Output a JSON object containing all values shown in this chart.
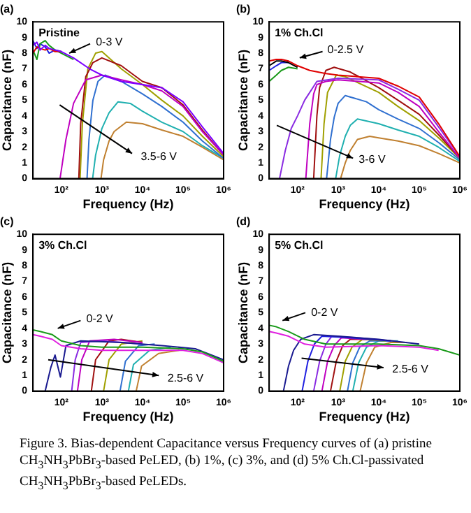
{
  "chart_data": [
    {
      "type": "line",
      "title": "(a)",
      "subtitle": "Pristine",
      "xlabel": "Frequency (Hz)",
      "ylabel": "Capacitance (nF)",
      "log": "x",
      "marker": "none",
      "xlim": [
        20,
        1000000
      ],
      "xticks": [
        {
          "value": 100,
          "label": "10²"
        },
        {
          "value": 1000,
          "label": "10³"
        },
        {
          "value": 10000,
          "label": "10⁴"
        },
        {
          "value": 100000,
          "label": "10⁵"
        },
        {
          "value": 1000000,
          "label": "10⁶"
        }
      ],
      "ylim": [
        0,
        10
      ],
      "yticks": [
        0,
        1,
        2,
        3,
        4,
        5,
        6,
        7,
        8,
        9,
        10
      ],
      "annotations": [
        "0-3 V",
        "3.5-6 V"
      ],
      "series": [
        {
          "color": "#7b00ff",
          "x": [
            20,
            25,
            30,
            40,
            50,
            70,
            100,
            200,
            500,
            1000,
            3000,
            10000,
            30000,
            100000,
            300000,
            1000000
          ],
          "values": [
            8.5,
            8.7,
            8.2,
            8.5,
            8.3,
            8.2,
            8.1,
            7.7,
            7.0,
            6.6,
            6.2,
            6.0,
            5.8,
            4.9,
            3.3,
            1.6
          ]
        },
        {
          "color": "#e00000",
          "x": [
            20,
            25,
            30,
            40,
            50,
            70,
            100
          ],
          "values": [
            8.0,
            8.4,
            8.3,
            8.2,
            8.3,
            8.1,
            8.1
          ]
        },
        {
          "color": "#1a9a1a",
          "x": [
            20,
            25,
            30,
            40,
            50,
            70,
            100,
            200
          ],
          "values": [
            8.2,
            7.6,
            8.6,
            8.8,
            8.5,
            8.2,
            8.0,
            7.6
          ]
        },
        {
          "color": "#2020e0",
          "x": [
            20,
            25,
            30,
            40,
            50,
            70,
            100
          ],
          "values": [
            8.8,
            8.3,
            8.6,
            8.4,
            8.0,
            8.2,
            8.1
          ]
        },
        {
          "color": "#c000c0",
          "x": [
            93,
            130,
            200,
            400,
            1000,
            3000,
            10000,
            30000,
            100000,
            300000,
            1000000
          ],
          "values": [
            0,
            2.5,
            4.8,
            6.3,
            6.6,
            6.3,
            6.0,
            5.6,
            4.6,
            3.0,
            1.5
          ]
        },
        {
          "color": "#a01010",
          "x": [
            270,
            300,
            400,
            600,
            1000,
            3000,
            10000,
            30000,
            100000,
            300000,
            1000000
          ],
          "values": [
            0,
            3.5,
            6.5,
            7.4,
            7.7,
            7.2,
            6.2,
            5.8,
            4.7,
            3.1,
            1.5
          ]
        },
        {
          "color": "#a0a000",
          "x": [
            290,
            330,
            450,
            700,
            1000,
            3000,
            10000,
            30000,
            100000,
            300000,
            1000000
          ],
          "values": [
            0,
            3.5,
            7.0,
            8.0,
            8.1,
            7.0,
            6.0,
            5.0,
            4.0,
            2.7,
            1.4
          ]
        },
        {
          "color": "#3070d0",
          "x": [
            430,
            480,
            600,
            800,
            1200,
            3000,
            10000,
            30000,
            100000,
            300000,
            1000000
          ],
          "values": [
            0,
            2.5,
            5.0,
            6.2,
            6.6,
            6.2,
            5.4,
            4.6,
            3.6,
            2.4,
            1.3
          ]
        },
        {
          "color": "#20b0b0",
          "x": [
            590,
            700,
            1000,
            1500,
            2500,
            5000,
            10000,
            30000,
            100000,
            300000,
            1000000
          ],
          "values": [
            0,
            1.5,
            3.2,
            4.2,
            4.9,
            4.8,
            4.3,
            3.6,
            3.0,
            2.1,
            1.3
          ]
        },
        {
          "color": "#c08030",
          "x": [
            950,
            1100,
            1500,
            2000,
            4000,
            10000,
            30000,
            100000,
            300000,
            1000000
          ],
          "values": [
            0,
            1.2,
            2.4,
            3.0,
            3.6,
            3.5,
            3.1,
            2.7,
            2.0,
            1.2
          ]
        }
      ]
    },
    {
      "type": "line",
      "title": "(b)",
      "subtitle": "1% Ch.Cl",
      "xlabel": "Frequency (Hz)",
      "ylabel": "Capacitance (nF)",
      "log": "x",
      "marker": "none",
      "xlim": [
        20,
        1000000
      ],
      "xticks": [
        {
          "value": 100,
          "label": "10²"
        },
        {
          "value": 1000,
          "label": "10³"
        },
        {
          "value": 10000,
          "label": "10⁴"
        },
        {
          "value": 100000,
          "label": "10⁵"
        },
        {
          "value": 1000000,
          "label": "10⁶"
        }
      ],
      "ylim": [
        0,
        10
      ],
      "yticks": [
        0,
        1,
        2,
        3,
        4,
        5,
        6,
        7,
        8,
        9,
        10
      ],
      "annotations": [
        "0-2.5 V",
        "3-6 V"
      ],
      "series": [
        {
          "color": "#e00000",
          "x": [
            20,
            30,
            40,
            60,
            100,
            200,
            500,
            1000,
            3000,
            10000,
            30000,
            100000,
            300000,
            1000000
          ],
          "values": [
            7.5,
            7.6,
            7.6,
            7.5,
            7.2,
            6.9,
            6.7,
            6.6,
            6.5,
            6.4,
            5.9,
            5.2,
            3.5,
            1.4
          ]
        },
        {
          "color": "#000000",
          "x": [
            20,
            30,
            40,
            60,
            100
          ],
          "values": [
            7.2,
            7.5,
            7.5,
            7.4,
            7.1
          ]
        },
        {
          "color": "#2020e0",
          "x": [
            20,
            30,
            40,
            60
          ],
          "values": [
            6.9,
            7.2,
            7.4,
            7.4
          ]
        },
        {
          "color": "#1a9a1a",
          "x": [
            20,
            30,
            40,
            60,
            100
          ],
          "values": [
            6.2,
            6.6,
            6.9,
            7.1,
            7.0
          ]
        },
        {
          "color": "#8a2be2",
          "x": [
            36,
            50,
            70,
            100,
            150,
            300,
            1000,
            10000,
            30000,
            100000,
            300000,
            1000000
          ],
          "values": [
            0,
            1.8,
            3.2,
            4.0,
            5.0,
            6.2,
            6.4,
            6.3,
            5.7,
            5.0,
            3.3,
            1.4
          ]
        },
        {
          "color": "#c000c0",
          "x": [
            160,
            200,
            250,
            300,
            500,
            1000,
            10000,
            30000,
            100000,
            300000,
            1000000
          ],
          "values": [
            0,
            3.5,
            5.4,
            6.0,
            6.2,
            6.3,
            6.1,
            5.5,
            4.6,
            3.0,
            1.3
          ]
        },
        {
          "color": "#a01010",
          "x": [
            250,
            300,
            350,
            500,
            800,
            2000,
            10000,
            30000,
            100000,
            300000,
            1000000
          ],
          "values": [
            0,
            4.0,
            5.8,
            6.9,
            7.1,
            6.8,
            5.8,
            5.0,
            4.1,
            2.8,
            1.3
          ]
        },
        {
          "color": "#a0a000",
          "x": [
            380,
            450,
            550,
            900,
            1500,
            10000,
            30000,
            100000,
            300000,
            1000000
          ],
          "values": [
            0,
            3.5,
            5.5,
            6.6,
            6.5,
            5.5,
            4.6,
            3.7,
            2.6,
            1.3
          ]
        },
        {
          "color": "#3070d0",
          "x": [
            520,
            650,
            800,
            1000,
            1500,
            5000,
            10000,
            30000,
            100000,
            300000,
            1000000
          ],
          "values": [
            0,
            2.5,
            3.9,
            4.8,
            5.3,
            4.9,
            4.4,
            3.8,
            3.2,
            2.3,
            1.2
          ]
        },
        {
          "color": "#20b0b0",
          "x": [
            870,
            1100,
            1500,
            2000,
            3000,
            10000,
            30000,
            100000,
            300000,
            1000000
          ],
          "values": [
            0,
            1.5,
            2.7,
            3.4,
            3.8,
            3.5,
            3.1,
            2.7,
            2.0,
            1.1
          ]
        },
        {
          "color": "#c08030",
          "x": [
            1150,
            1500,
            2000,
            3000,
            6000,
            10000,
            30000,
            100000,
            300000,
            1000000
          ],
          "values": [
            0,
            1.0,
            1.8,
            2.5,
            2.7,
            2.6,
            2.4,
            2.1,
            1.6,
            1.0
          ]
        }
      ]
    },
    {
      "type": "line",
      "title": "(c)",
      "subtitle": "3% Ch.Cl",
      "xlabel": "Frequency (Hz)",
      "ylabel": "Capacitance (nF)",
      "log": "x",
      "marker": "none",
      "xlim": [
        20,
        1000000
      ],
      "xticks": [
        {
          "value": 100,
          "label": "10²"
        },
        {
          "value": 1000,
          "label": "10³"
        },
        {
          "value": 10000,
          "label": "10⁴"
        },
        {
          "value": 100000,
          "label": "10⁵"
        },
        {
          "value": 1000000,
          "label": "10⁶"
        }
      ],
      "ylim": [
        0,
        10
      ],
      "yticks": [
        0,
        1,
        2,
        3,
        4,
        5,
        6,
        7,
        8,
        9,
        10
      ],
      "annotations": [
        "0-2 V",
        "2.5-6 V"
      ],
      "series": [
        {
          "color": "#1a9a1a",
          "x": [
            20,
            30,
            60,
            100,
            300,
            1000,
            10000,
            100000,
            300000,
            1000000
          ],
          "values": [
            3.9,
            3.8,
            3.6,
            3.2,
            2.9,
            2.8,
            2.8,
            2.7,
            2.5,
            1.9
          ]
        },
        {
          "color": "#e020e0",
          "x": [
            20,
            30,
            60,
            100,
            300,
            1000,
            10000,
            100000,
            300000,
            1000000
          ],
          "values": [
            3.6,
            3.5,
            3.3,
            2.9,
            2.7,
            2.6,
            2.6,
            2.6,
            2.4,
            1.8
          ]
        },
        {
          "color": "#1a1a90",
          "x": [
            40,
            55,
            70,
            95,
            130,
            300,
            3000,
            30000,
            200000,
            1000000
          ],
          "values": [
            0,
            1.5,
            2.3,
            0.9,
            2.9,
            3.2,
            3.1,
            2.9,
            2.7,
            2.0
          ]
        },
        {
          "color": "#8a2be2",
          "x": [
            180,
            220,
            300,
            1000,
            10000
          ],
          "values": [
            0,
            2.0,
            3.1,
            3.2,
            3.0
          ]
        },
        {
          "color": "#c000c0",
          "x": [
            250,
            320,
            500,
            2000,
            10000
          ],
          "values": [
            0,
            2.0,
            3.2,
            3.3,
            3.1
          ]
        },
        {
          "color": "#a01010",
          "x": [
            550,
            700,
            1500,
            3000,
            10000
          ],
          "values": [
            0,
            2.0,
            3.2,
            3.3,
            3.1
          ]
        },
        {
          "color": "#a0a000",
          "x": [
            1100,
            1500,
            3000,
            10000
          ],
          "values": [
            0,
            2.0,
            3.0,
            3.2
          ]
        },
        {
          "color": "#3070d0",
          "x": [
            2800,
            3800,
            8000,
            20000
          ],
          "values": [
            0,
            1.9,
            2.9,
            3.0
          ]
        },
        {
          "color": "#20b0b0",
          "x": [
            4500,
            6000,
            15000,
            50000
          ],
          "values": [
            0,
            1.7,
            2.6,
            2.8
          ]
        },
        {
          "color": "#c08030",
          "x": [
            7000,
            9500,
            25000,
            80000
          ],
          "values": [
            0,
            1.6,
            2.4,
            2.6
          ]
        }
      ]
    },
    {
      "type": "line",
      "title": "(d)",
      "subtitle": "5% Ch.Cl",
      "xlabel": "Frequency (Hz)",
      "ylabel": "Capacitance (nF)",
      "log": "x",
      "marker": "none",
      "xlim": [
        20,
        1000000
      ],
      "xticks": [
        {
          "value": 100,
          "label": "10²"
        },
        {
          "value": 1000,
          "label": "10³"
        },
        {
          "value": 10000,
          "label": "10⁴"
        },
        {
          "value": 100000,
          "label": "10⁵"
        },
        {
          "value": 1000000,
          "label": "10⁶"
        }
      ],
      "ylim": [
        0,
        10
      ],
      "yticks": [
        0,
        1,
        2,
        3,
        4,
        5,
        6,
        7,
        8,
        9,
        10
      ],
      "annotations": [
        "0-2 V",
        "2.5-6 V",
        "Figure 3. Bias-dependent Capacitance versus Frequency curves of (a) pristine CH$_{3}$NH$_{3}$PbBr$_{3}$-based PeLED, (b) 1%, (c) 3%, and (d) 5% Ch.Cl-passivated CH$_{3}$NH$_{3}$PbBr$_{3}$-based PeLEDs."
      ],
      "series": [
        {
          "color": "#1a9a1a",
          "x": [
            20,
            30,
            60,
            150,
            500,
            10000,
            100000,
            300000,
            1000000
          ],
          "values": [
            4.2,
            4.1,
            3.8,
            3.3,
            3.0,
            3.0,
            2.9,
            2.7,
            2.3
          ]
        },
        {
          "color": "#e020e0",
          "x": [
            20,
            30,
            60,
            150,
            500,
            10000,
            100000,
            300000
          ],
          "values": [
            3.8,
            3.7,
            3.5,
            3.0,
            2.8,
            2.9,
            2.8,
            2.6
          ]
        },
        {
          "color": "#1a1a90",
          "x": [
            45,
            60,
            80,
            120,
            250,
            1000,
            10000,
            100000
          ],
          "values": [
            0,
            1.6,
            2.6,
            3.3,
            3.6,
            3.5,
            3.3,
            3.0
          ]
        },
        {
          "color": "#2020e0",
          "x": [
            130,
            180,
            260,
            400,
            2000,
            20000
          ],
          "values": [
            0,
            1.9,
            3.0,
            3.5,
            3.4,
            3.2
          ]
        },
        {
          "color": "#8a2be2",
          "x": [
            250,
            350,
            500,
            700,
            3000,
            20000
          ],
          "values": [
            0,
            1.9,
            3.0,
            3.5,
            3.4,
            3.2
          ]
        },
        {
          "color": "#c000c0",
          "x": [
            400,
            550,
            800,
            1200,
            5000
          ],
          "values": [
            0,
            1.9,
            2.9,
            3.4,
            3.3
          ]
        },
        {
          "color": "#a01010",
          "x": [
            650,
            900,
            1300,
            2000,
            8000
          ],
          "values": [
            0,
            1.9,
            2.9,
            3.3,
            3.3
          ]
        },
        {
          "color": "#a0a000",
          "x": [
            1100,
            1500,
            2200,
            4000,
            15000
          ],
          "values": [
            0,
            1.9,
            2.8,
            3.3,
            3.2
          ]
        },
        {
          "color": "#3070d0",
          "x": [
            1700,
            2300,
            3400,
            6000,
            20000
          ],
          "values": [
            0,
            1.8,
            2.8,
            3.2,
            3.2
          ]
        },
        {
          "color": "#20b0b0",
          "x": [
            2300,
            3200,
            5000,
            10000,
            30000
          ],
          "values": [
            0,
            1.8,
            2.8,
            3.2,
            3.2
          ]
        },
        {
          "color": "#c08030",
          "x": [
            3500,
            5000,
            8000,
            20000,
            50000
          ],
          "values": [
            0,
            1.8,
            2.8,
            3.1,
            3.1
          ]
        }
      ]
    }
  ]
}
